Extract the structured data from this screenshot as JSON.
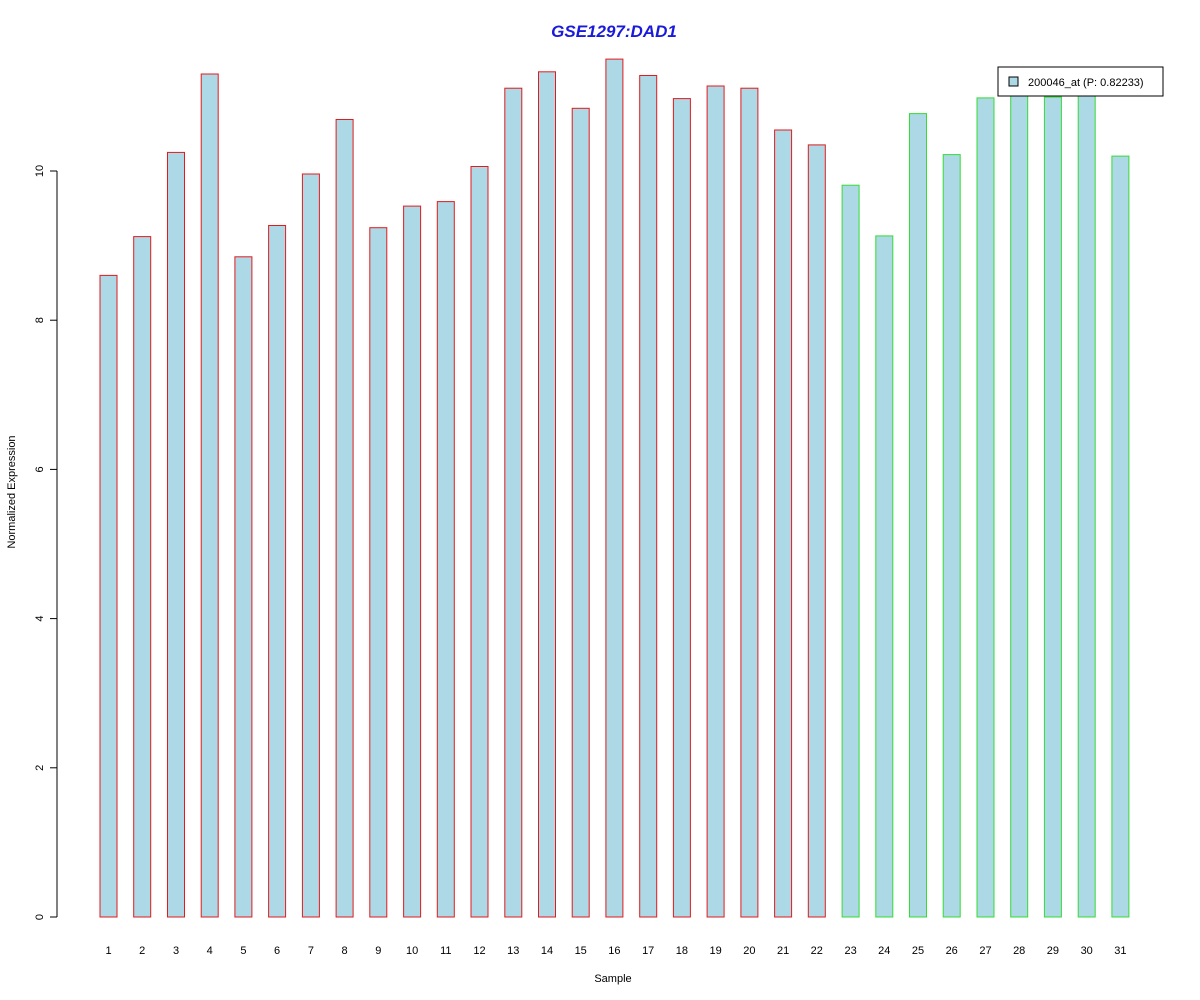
{
  "chart_data": {
    "type": "bar",
    "title": "GSE1297:DAD1",
    "xlabel": "Sample",
    "ylabel": "Normalized Expression",
    "categories": [
      "1",
      "2",
      "3",
      "4",
      "5",
      "6",
      "7",
      "8",
      "9",
      "10",
      "11",
      "12",
      "13",
      "14",
      "15",
      "16",
      "17",
      "18",
      "19",
      "20",
      "21",
      "22",
      "23",
      "24",
      "25",
      "26",
      "27",
      "28",
      "29",
      "30",
      "31"
    ],
    "series": [
      {
        "name": "200046_at (P: 0.82233)",
        "values": [
          8.6,
          9.12,
          10.25,
          11.3,
          8.85,
          9.27,
          9.96,
          10.69,
          9.24,
          9.53,
          9.59,
          10.06,
          11.11,
          11.33,
          10.84,
          11.5,
          11.28,
          10.97,
          11.14,
          11.11,
          10.55,
          10.35,
          9.81,
          9.13,
          10.77,
          10.22,
          10.98,
          11.05,
          10.99,
          11.05,
          10.2
        ]
      }
    ],
    "group_border_colors": [
      "#e31a1c",
      "#e31a1c",
      "#e31a1c",
      "#e31a1c",
      "#e31a1c",
      "#e31a1c",
      "#e31a1c",
      "#e31a1c",
      "#e31a1c",
      "#e31a1c",
      "#e31a1c",
      "#e31a1c",
      "#e31a1c",
      "#e31a1c",
      "#e31a1c",
      "#e31a1c",
      "#e31a1c",
      "#e31a1c",
      "#e31a1c",
      "#e31a1c",
      "#e31a1c",
      "#e31a1c",
      "#33dd33",
      "#33dd33",
      "#33dd33",
      "#33dd33",
      "#33dd33",
      "#33dd33",
      "#33dd33",
      "#33dd33",
      "#33dd33"
    ],
    "bar_fill_color": "#add8e6",
    "title_color": "#1a1adb",
    "yticks": [
      0,
      2,
      4,
      6,
      8,
      10
    ],
    "ylim": [
      0,
      11.5
    ],
    "legend_position": "top-right",
    "grid": false
  }
}
